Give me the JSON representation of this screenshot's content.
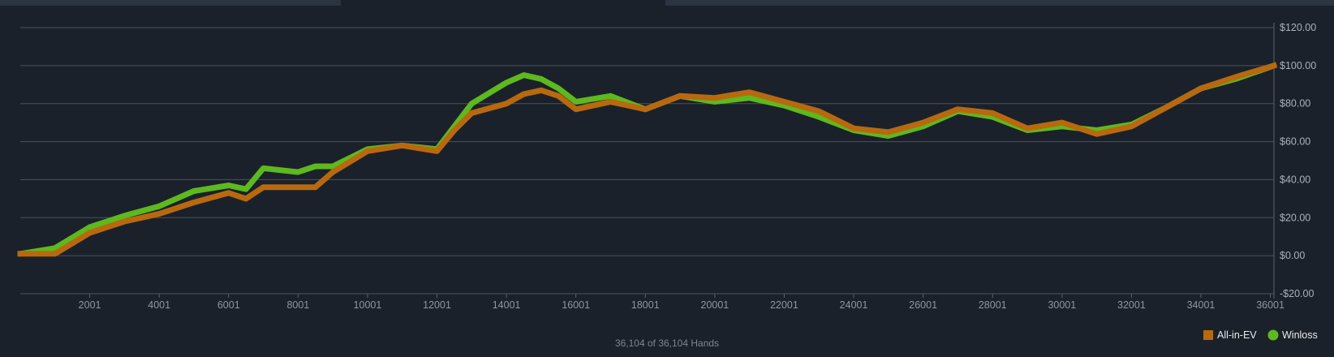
{
  "chart_data": {
    "type": "line",
    "title": "",
    "xlabel": "",
    "ylabel": "",
    "xlim": [
      1,
      36104
    ],
    "ylim": [
      -20,
      120
    ],
    "x_ticks": [
      2001,
      4001,
      6001,
      8001,
      10001,
      12001,
      14001,
      16001,
      18001,
      20001,
      22001,
      24001,
      26001,
      28001,
      30001,
      32001,
      34001,
      36001
    ],
    "x_tick_labels": [
      "2001",
      "4001",
      "6001",
      "8001",
      "10001",
      "12001",
      "14001",
      "16001",
      "18001",
      "20001",
      "22001",
      "24001",
      "26001",
      "28001",
      "30001",
      "32001",
      "34001",
      "36001"
    ],
    "y_ticks": [
      120,
      100,
      80,
      60,
      40,
      20,
      0,
      -20
    ],
    "y_tick_labels": [
      "$120.00",
      "$100.00",
      "$80.00",
      "$60.00",
      "$40.00",
      "$20.00",
      "$0.00",
      "-$20.00"
    ],
    "grid": true,
    "legend_position": "bottom-right",
    "footer": "36,104 of 36,104 Hands",
    "series": [
      {
        "name": "All-in-EV",
        "color": "#b8690f",
        "marker": "square",
        "x": [
          1,
          1000,
          2000,
          3000,
          4000,
          5000,
          6000,
          6500,
          7000,
          8000,
          8500,
          9000,
          10000,
          11000,
          12000,
          12500,
          13000,
          14000,
          14500,
          15000,
          15500,
          16000,
          17000,
          18000,
          19000,
          20000,
          21000,
          22000,
          23000,
          24000,
          25000,
          26000,
          27000,
          28000,
          29000,
          30000,
          31000,
          32000,
          33000,
          34000,
          35000,
          36104
        ],
        "values": [
          1,
          1,
          12,
          18,
          22,
          28,
          33,
          30,
          36,
          36,
          36,
          44,
          55,
          58,
          55,
          66,
          75,
          80,
          85,
          87,
          84,
          77,
          81,
          77,
          84,
          83,
          86,
          81,
          76,
          67,
          65,
          70,
          77,
          75,
          67,
          70,
          64,
          68,
          78,
          88,
          94,
          100
        ]
      },
      {
        "name": "Winloss",
        "color": "#5db91e",
        "marker": "circle",
        "x": [
          1,
          1000,
          2000,
          3000,
          4000,
          5000,
          6000,
          6500,
          7000,
          8000,
          8500,
          9000,
          10000,
          11000,
          12000,
          12500,
          13000,
          14000,
          14500,
          15000,
          15500,
          16000,
          17000,
          18000,
          19000,
          20000,
          21000,
          22000,
          23000,
          24000,
          25000,
          26000,
          27000,
          28000,
          29000,
          30000,
          31000,
          32000,
          33000,
          34000,
          35000,
          36104
        ],
        "values": [
          1,
          4,
          15,
          21,
          26,
          34,
          37,
          35,
          46,
          44,
          47,
          47,
          56,
          58,
          56,
          68,
          80,
          91,
          95,
          93,
          88,
          81,
          84,
          77,
          84,
          81,
          83,
          79,
          73,
          66,
          63,
          68,
          76,
          73,
          66,
          68,
          66,
          69,
          78,
          88,
          93,
          100
        ]
      }
    ]
  }
}
